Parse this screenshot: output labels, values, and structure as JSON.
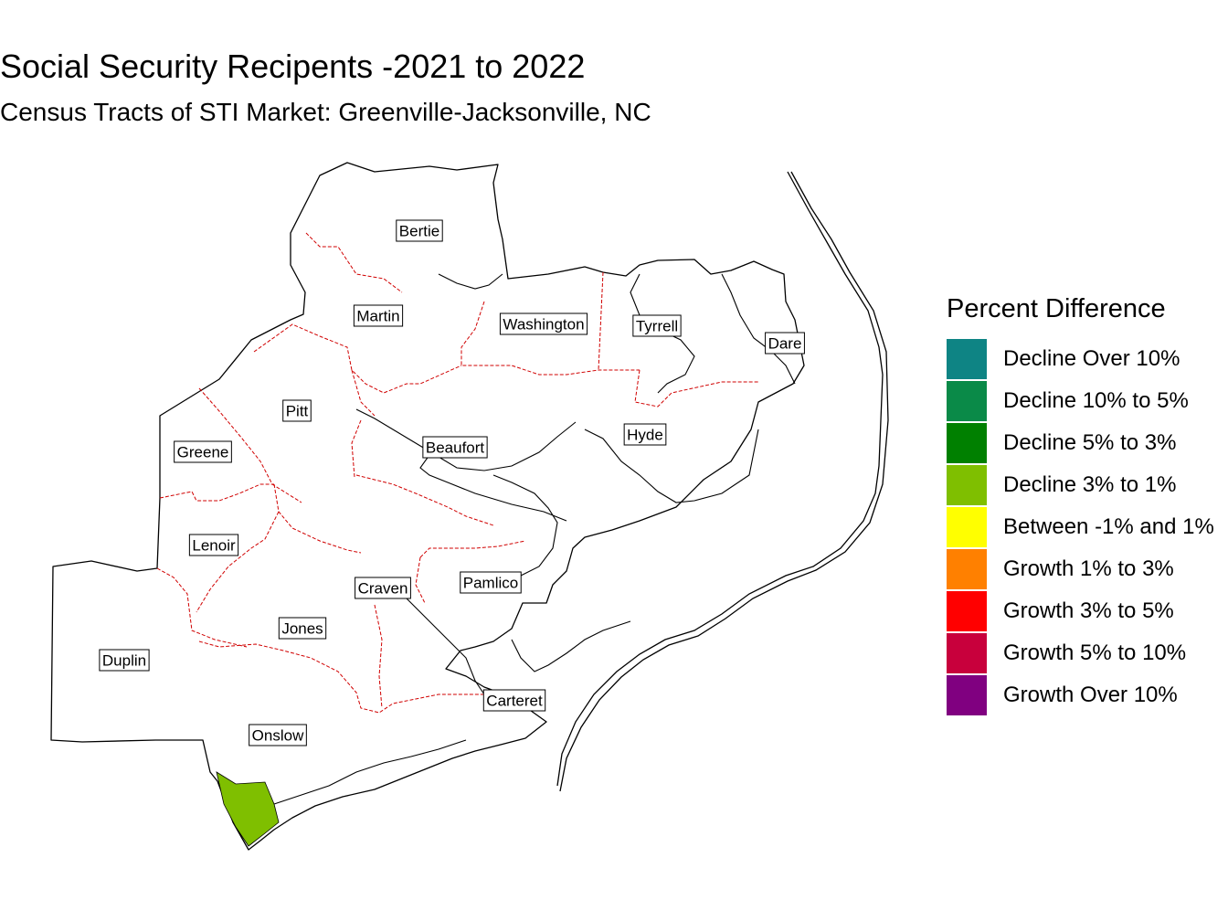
{
  "title": "Social Security Recipents -2021 to 2022",
  "subtitle": "Census Tracts of STI Market: Greenville-Jacksonville, NC",
  "legend": {
    "title": "Percent Difference",
    "items": [
      {
        "label": "Decline Over 10%",
        "color": "#0E8484"
      },
      {
        "label": "Decline 10% to 5%",
        "color": "#0A8A48"
      },
      {
        "label": "Decline 5% to 3%",
        "color": "#008000"
      },
      {
        "label": "Decline 3% to 1%",
        "color": "#7FBF00"
      },
      {
        "label": "Between -1% and 1%",
        "color": "#FFFF00"
      },
      {
        "label": "Growth 1% to 3%",
        "color": "#FF8000"
      },
      {
        "label": "Growth 3% to 5%",
        "color": "#FF0000"
      },
      {
        "label": "Growth 5% to 10%",
        "color": "#C8003C"
      },
      {
        "label": "Growth Over 10%",
        "color": "#800080"
      }
    ]
  },
  "counties": [
    "Bertie",
    "Martin",
    "Washington",
    "Tyrrell",
    "Dare",
    "Pitt",
    "Greene",
    "Beaufort",
    "Hyde",
    "Lenoir",
    "Craven",
    "Pamlico",
    "Jones",
    "Duplin",
    "Carteret",
    "Onslow"
  ],
  "highlighted_tract": {
    "category": "Decline 3% to 1%",
    "color": "#7FBF00"
  },
  "border_colors": {
    "outline": "#000000",
    "county_border": "#D00000"
  }
}
